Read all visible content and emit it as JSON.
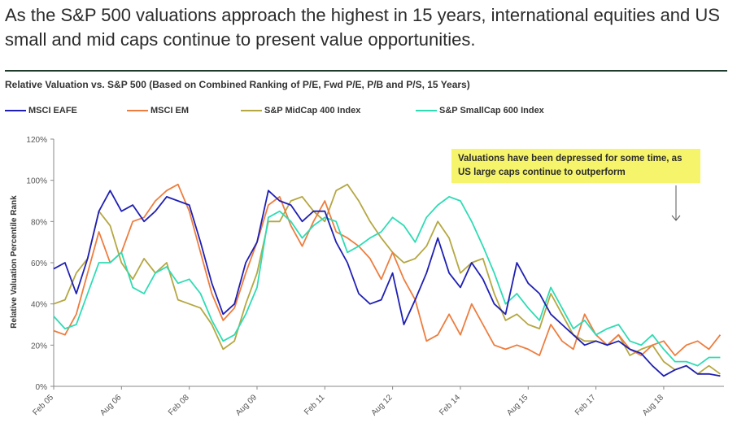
{
  "page": {
    "headline": "As the S&P 500 valuations approach the highest in 15 years, international equities and US small and mid caps continue to present value opportunities."
  },
  "colors": {
    "eafe": "#1f1fb4",
    "em": "#ed7d3f",
    "midcap": "#b5a742",
    "smallcap": "#2edcb4",
    "callout_bg": "#f5f46a"
  },
  "callout": {
    "text": "Valuations have been depressed for some time, as US large caps continue to outperform"
  },
  "chart_data": {
    "type": "line",
    "title": "Relative Valuation vs. S&P 500 (Based on Combined Ranking of P/E, Fwd P/E, P/B and P/S, 15 Years)",
    "ylabel": "Relative Valuation Percentile Rank",
    "xlabel": "",
    "ylim": [
      0,
      120
    ],
    "yticks": [
      "0%",
      "20%",
      "40%",
      "60%",
      "80%",
      "100%",
      "120%"
    ],
    "xlim": [
      "2005-02",
      "2019-12"
    ],
    "xticks": [
      "Feb 05",
      "Aug 06",
      "Feb 08",
      "Aug 09",
      "Feb 11",
      "Aug 12",
      "Feb 14",
      "Aug 15",
      "Feb 17",
      "Aug 18"
    ],
    "x": [
      "2005-02",
      "2005-05",
      "2005-08",
      "2005-11",
      "2006-02",
      "2006-05",
      "2006-08",
      "2006-11",
      "2007-02",
      "2007-05",
      "2007-08",
      "2007-11",
      "2008-02",
      "2008-05",
      "2008-08",
      "2008-11",
      "2009-02",
      "2009-05",
      "2009-08",
      "2009-11",
      "2010-02",
      "2010-05",
      "2010-08",
      "2010-11",
      "2011-02",
      "2011-05",
      "2011-08",
      "2011-11",
      "2012-02",
      "2012-05",
      "2012-08",
      "2012-11",
      "2013-02",
      "2013-05",
      "2013-08",
      "2013-11",
      "2014-02",
      "2014-05",
      "2014-08",
      "2014-11",
      "2015-02",
      "2015-05",
      "2015-08",
      "2015-11",
      "2016-02",
      "2016-05",
      "2016-08",
      "2016-11",
      "2017-02",
      "2017-05",
      "2017-08",
      "2017-11",
      "2018-02",
      "2018-05",
      "2018-08",
      "2018-11",
      "2019-02",
      "2019-05",
      "2019-08",
      "2019-11"
    ],
    "series": [
      {
        "name": "MSCI EAFE",
        "values": [
          57,
          60,
          45,
          62,
          85,
          95,
          85,
          88,
          80,
          85,
          92,
          90,
          88,
          70,
          50,
          35,
          40,
          60,
          70,
          95,
          90,
          88,
          80,
          85,
          85,
          70,
          60,
          45,
          40,
          42,
          55,
          30,
          42,
          55,
          72,
          55,
          48,
          60,
          52,
          40,
          35,
          60,
          50,
          45,
          35,
          30,
          25,
          20,
          22,
          20,
          22,
          18,
          16,
          10,
          5,
          8,
          10,
          6,
          6,
          5
        ]
      },
      {
        "name": "MSCI EM",
        "values": [
          27,
          25,
          35,
          55,
          75,
          60,
          65,
          80,
          82,
          90,
          95,
          98,
          85,
          65,
          45,
          32,
          38,
          55,
          70,
          88,
          92,
          78,
          68,
          80,
          90,
          75,
          72,
          68,
          62,
          52,
          65,
          52,
          42,
          22,
          25,
          35,
          25,
          40,
          30,
          20,
          18,
          20,
          18,
          15,
          30,
          22,
          18,
          35,
          25,
          20,
          25,
          18,
          15,
          20,
          22,
          15,
          20,
          22,
          18,
          25
        ]
      },
      {
        "name": "S&P MidCap 400 Index",
        "values": [
          40,
          42,
          55,
          62,
          85,
          78,
          60,
          52,
          62,
          55,
          60,
          42,
          40,
          38,
          30,
          18,
          22,
          40,
          55,
          80,
          80,
          90,
          92,
          85,
          80,
          95,
          98,
          90,
          80,
          72,
          65,
          60,
          62,
          68,
          80,
          72,
          55,
          60,
          62,
          45,
          32,
          35,
          30,
          28,
          45,
          35,
          25,
          22,
          22,
          20,
          25,
          15,
          18,
          20,
          12,
          8,
          10,
          6,
          10,
          6
        ]
      },
      {
        "name": "S&P SmallCap 600 Index",
        "values": [
          34,
          28,
          30,
          45,
          60,
          60,
          65,
          48,
          45,
          55,
          58,
          50,
          52,
          45,
          32,
          22,
          25,
          35,
          48,
          82,
          85,
          80,
          72,
          78,
          82,
          80,
          65,
          68,
          72,
          75,
          82,
          78,
          70,
          82,
          88,
          92,
          90,
          80,
          68,
          55,
          40,
          45,
          38,
          32,
          48,
          38,
          28,
          32,
          25,
          28,
          30,
          22,
          20,
          25,
          18,
          12,
          12,
          10,
          14,
          14
        ]
      }
    ]
  }
}
